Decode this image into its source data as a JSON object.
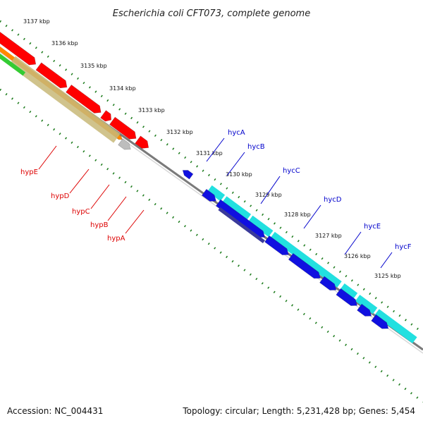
{
  "title": "Escherichia coli CFT073, complete genome",
  "footer": {
    "accession": "Accession: NC_004431",
    "summary": "Topology: circular; Length: 5,231,428 bp; Genes: 5,454"
  },
  "ruler": {
    "labels": [
      "3137 kbp",
      "3136 kbp",
      "3135 kbp",
      "3134 kbp",
      "3133 kbp",
      "3132 kbp",
      "3131 kbp",
      "3130 kbp",
      "3129 kbp",
      "3128 kbp",
      "3127 kbp",
      "3126 kbp",
      "3125 kbp"
    ]
  },
  "gene_labels": {
    "hyp": [
      "hypE",
      "hypD",
      "hypC",
      "hypB",
      "hypA"
    ],
    "hyc": [
      "hycA",
      "hycB",
      "hycC",
      "hycD",
      "hycE",
      "hycF"
    ]
  },
  "colors": {
    "backbone": "#7a7a7a",
    "ruler_dots": "#1a7a1a",
    "red_genes": "#ff0000",
    "orange_genes": "#ff8800",
    "green_genes": "#33cc33",
    "khaki_genes": "#c8b878",
    "gray_gene": "#bdbdbd",
    "blue_genes": "#1010e0",
    "dark_blue_gene": "#3a3a9a",
    "cyan_genes": "#22e0e0",
    "hyp_label": "#dd0000",
    "hyc_label": "#0000cc"
  }
}
